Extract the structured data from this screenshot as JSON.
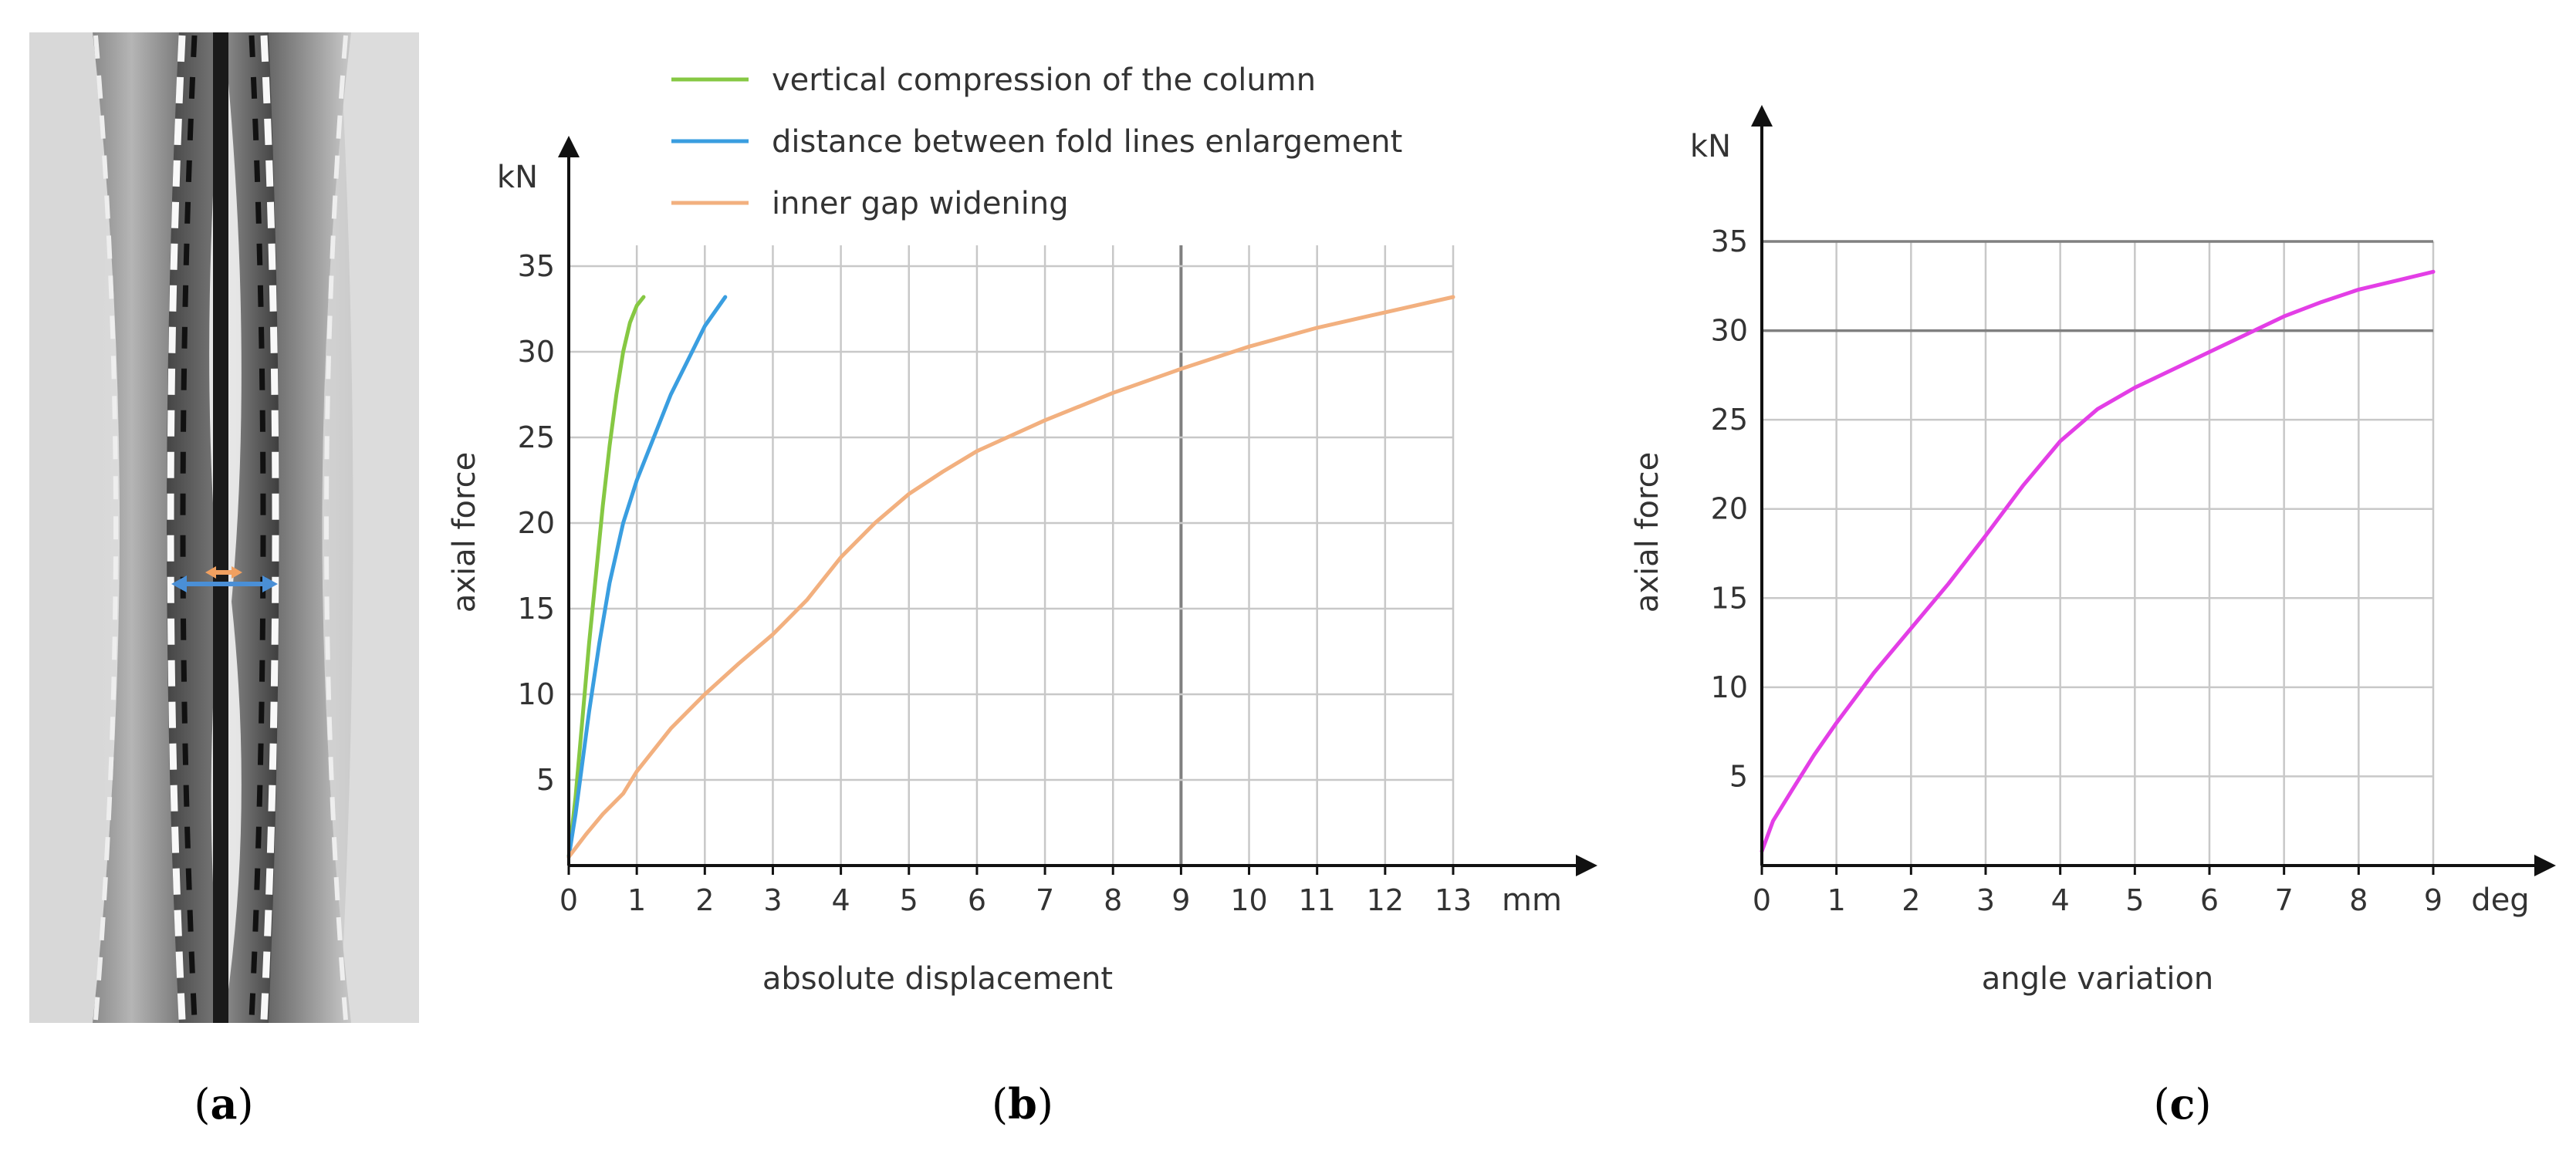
{
  "panels": {
    "a": {
      "label_open": "(",
      "label_letter": "a",
      "label_close": ")"
    },
    "b": {
      "label_open": "(",
      "label_letter": "b",
      "label_close": ")"
    },
    "c": {
      "label_open": "(",
      "label_letter": "c",
      "label_close": ")"
    }
  },
  "colors": {
    "green": "#86c843",
    "blue": "#3a9ee0",
    "orange": "#f2b07f",
    "magenta": "#e33ee6",
    "grid": "#c8c8c8",
    "grid_dark": "#808080",
    "axis": "#111111",
    "arrow_blue": "#4a8fd6",
    "arrow_orange": "#f0a060"
  },
  "photo_icon": "folded-column-photo",
  "chart_data": [
    {
      "id": "b",
      "type": "line",
      "title": "",
      "xlabel": "absolute displacement",
      "ylabel": "axial force",
      "x_unit": "mm",
      "y_unit": "kN",
      "xlim": [
        0,
        13
      ],
      "ylim": [
        0,
        35
      ],
      "x_ticks": [
        0,
        1,
        2,
        3,
        4,
        5,
        6,
        7,
        8,
        9,
        10,
        11,
        12,
        13
      ],
      "y_ticks": [
        5,
        10,
        15,
        20,
        25,
        30,
        35
      ],
      "grid": true,
      "legend_position": "top",
      "series": [
        {
          "name": "vertical compression of the column",
          "color": "#86c843",
          "points": [
            [
              0,
              0.5
            ],
            [
              0.1,
              4
            ],
            [
              0.2,
              8.5
            ],
            [
              0.3,
              13
            ],
            [
              0.4,
              17
            ],
            [
              0.5,
              21
            ],
            [
              0.6,
              24.5
            ],
            [
              0.7,
              27.5
            ],
            [
              0.8,
              30
            ],
            [
              0.9,
              31.7
            ],
            [
              1.0,
              32.7
            ],
            [
              1.1,
              33.2
            ]
          ]
        },
        {
          "name": "distance between fold lines enlargement",
          "color": "#3a9ee0",
          "points": [
            [
              0,
              0.5
            ],
            [
              0.1,
              3
            ],
            [
              0.2,
              6
            ],
            [
              0.3,
              9
            ],
            [
              0.45,
              13
            ],
            [
              0.6,
              16.5
            ],
            [
              0.8,
              20
            ],
            [
              1.0,
              22.5
            ],
            [
              1.25,
              25
            ],
            [
              1.5,
              27.5
            ],
            [
              1.75,
              29.5
            ],
            [
              2.0,
              31.5
            ],
            [
              2.3,
              33.2
            ]
          ]
        },
        {
          "name": "inner gap widening",
          "color": "#f2b07f",
          "points": [
            [
              0,
              0.5
            ],
            [
              0.25,
              1.8
            ],
            [
              0.5,
              3
            ],
            [
              0.8,
              4.2
            ],
            [
              1,
              5.5
            ],
            [
              1.5,
              8
            ],
            [
              2,
              10
            ],
            [
              2.5,
              11.8
            ],
            [
              3,
              13.5
            ],
            [
              3.5,
              15.5
            ],
            [
              4,
              18
            ],
            [
              4.5,
              20
            ],
            [
              5,
              21.7
            ],
            [
              5.5,
              23
            ],
            [
              6,
              24.2
            ],
            [
              7,
              26
            ],
            [
              8,
              27.6
            ],
            [
              9,
              29
            ],
            [
              10,
              30.3
            ],
            [
              11,
              31.4
            ],
            [
              12,
              32.3
            ],
            [
              13,
              33.2
            ]
          ]
        }
      ]
    },
    {
      "id": "c",
      "type": "line",
      "title": "",
      "xlabel": "angle variation",
      "ylabel": "axial force",
      "x_unit": "deg",
      "y_unit": "kN",
      "xlim": [
        0,
        9
      ],
      "ylim": [
        0,
        35
      ],
      "x_ticks": [
        0,
        1,
        2,
        3,
        4,
        5,
        6,
        7,
        8,
        9
      ],
      "y_ticks": [
        5,
        10,
        15,
        20,
        25,
        30,
        35
      ],
      "grid": true,
      "series": [
        {
          "name": "",
          "color": "#e33ee6",
          "points": [
            [
              0,
              0.8
            ],
            [
              0.15,
              2.5
            ],
            [
              0.4,
              4.2
            ],
            [
              0.7,
              6.2
            ],
            [
              1,
              8
            ],
            [
              1.5,
              10.8
            ],
            [
              2,
              13.3
            ],
            [
              2.5,
              15.8
            ],
            [
              3,
              18.5
            ],
            [
              3.5,
              21.3
            ],
            [
              4,
              23.8
            ],
            [
              4.5,
              25.6
            ],
            [
              5,
              26.8
            ],
            [
              5.5,
              27.8
            ],
            [
              6,
              28.8
            ],
            [
              6.5,
              29.8
            ],
            [
              7,
              30.8
            ],
            [
              7.5,
              31.6
            ],
            [
              8,
              32.3
            ],
            [
              8.5,
              32.8
            ],
            [
              9,
              33.3
            ]
          ]
        }
      ]
    }
  ]
}
